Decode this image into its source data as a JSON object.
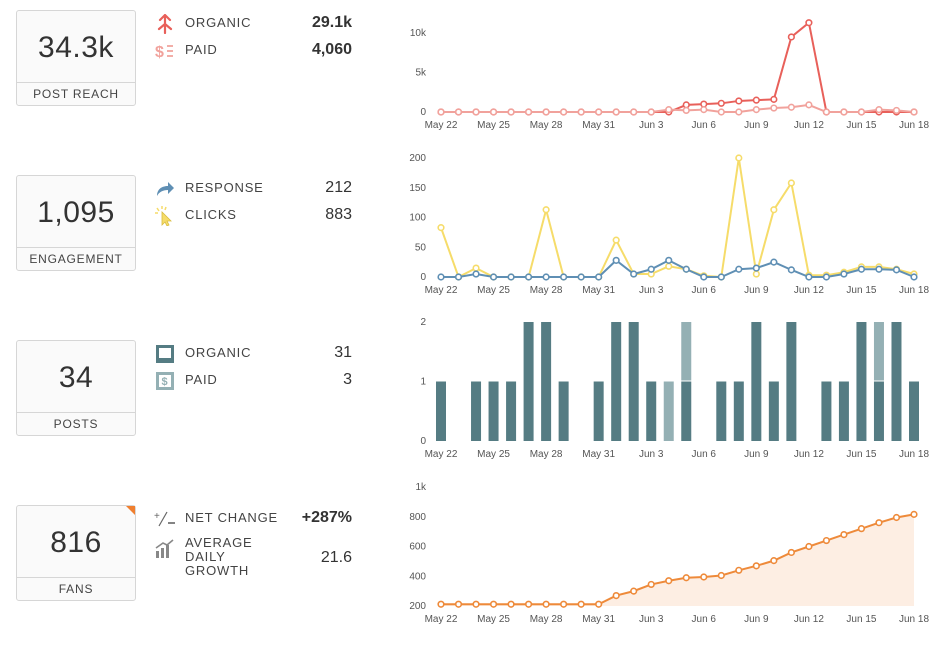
{
  "rows": [
    {
      "kpi": {
        "value": "34.3k",
        "label": "POST REACH"
      },
      "metrics": [
        {
          "icon": "organic-reach-icon",
          "label": "ORGANIC",
          "value": "29.1k"
        },
        {
          "icon": "paid-reach-icon",
          "label": "PAID",
          "value": "4,060"
        }
      ]
    },
    {
      "kpi": {
        "value": "1,095",
        "label": "ENGAGEMENT"
      },
      "metrics": [
        {
          "icon": "response-arrow-icon",
          "label": "RESPONSE",
          "value": "212"
        },
        {
          "icon": "click-cursor-icon",
          "label": "CLICKS",
          "value": "883"
        }
      ]
    },
    {
      "kpi": {
        "value": "34",
        "label": "POSTS"
      },
      "metrics": [
        {
          "icon": "organic-post-icon",
          "label": "ORGANIC",
          "value": "31"
        },
        {
          "icon": "paid-post-icon",
          "label": "PAID",
          "value": "3"
        }
      ]
    },
    {
      "kpi": {
        "value": "816",
        "label": "FANS"
      },
      "metrics": [
        {
          "icon": "plus-minus-icon",
          "label": "NET CHANGE",
          "value": "+287%"
        },
        {
          "icon": "growth-bars-icon",
          "label": "AVERAGE\nDAILY\nGROWTH",
          "value": "21.6"
        }
      ]
    }
  ],
  "colors": {
    "organic_reach": "#e8605a",
    "paid_reach": "#f1a29c",
    "response": "#5f8fb4",
    "clicks": "#f6dc6a",
    "posts_organic": "#557c83",
    "posts_paid": "#94b0b4",
    "fans": "#ee8a3a",
    "fans_fill": "#fdeee3"
  },
  "chart_data": [
    {
      "type": "line",
      "title": "",
      "x": [
        "May 22",
        "May 23",
        "May 24",
        "May 25",
        "May 26",
        "May 27",
        "May 28",
        "May 29",
        "May 30",
        "May 31",
        "Jun 1",
        "Jun 2",
        "Jun 3",
        "Jun 4",
        "Jun 5",
        "Jun 6",
        "Jun 7",
        "Jun 8",
        "Jun 9",
        "Jun 10",
        "Jun 11",
        "Jun 12",
        "Jun 13",
        "Jun 14",
        "Jun 15",
        "Jun 16",
        "Jun 17",
        "Jun 18"
      ],
      "xticks": [
        "May 22",
        "May 25",
        "May 28",
        "May 31",
        "Jun 3",
        "Jun 6",
        "Jun 9",
        "Jun 12",
        "Jun 15",
        "Jun 18"
      ],
      "ylim": [
        0,
        10000
      ],
      "yticks": [
        0,
        5000,
        10000
      ],
      "ytick_labels": [
        "0",
        "5k",
        "10k"
      ],
      "series": [
        {
          "key": "organic_reach",
          "values": [
            0,
            0,
            0,
            0,
            0,
            0,
            0,
            0,
            0,
            0,
            0,
            0,
            0,
            0,
            900,
            1000,
            1100,
            1400,
            1500,
            1600,
            9500,
            11300,
            0,
            0,
            0,
            0,
            0,
            0
          ]
        },
        {
          "key": "paid_reach",
          "values": [
            0,
            0,
            0,
            0,
            0,
            0,
            0,
            0,
            0,
            0,
            0,
            0,
            0,
            300,
            200,
            300,
            0,
            0,
            300,
            500,
            600,
            900,
            0,
            0,
            0,
            300,
            200,
            0
          ]
        }
      ]
    },
    {
      "type": "line",
      "title": "",
      "x": [
        "May 22",
        "May 23",
        "May 24",
        "May 25",
        "May 26",
        "May 27",
        "May 28",
        "May 29",
        "May 30",
        "May 31",
        "Jun 1",
        "Jun 2",
        "Jun 3",
        "Jun 4",
        "Jun 5",
        "Jun 6",
        "Jun 7",
        "Jun 8",
        "Jun 9",
        "Jun 10",
        "Jun 11",
        "Jun 12",
        "Jun 13",
        "Jun 14",
        "Jun 15",
        "Jun 16",
        "Jun 17",
        "Jun 18"
      ],
      "xticks": [
        "May 22",
        "May 25",
        "May 28",
        "May 31",
        "Jun 3",
        "Jun 6",
        "Jun 9",
        "Jun 12",
        "Jun 15",
        "Jun 18"
      ],
      "ylim": [
        0,
        200
      ],
      "yticks": [
        0,
        50,
        100,
        150,
        200
      ],
      "series": [
        {
          "key": "clicks",
          "values": [
            83,
            0,
            15,
            0,
            0,
            0,
            113,
            0,
            0,
            0,
            62,
            5,
            5,
            18,
            13,
            2,
            0,
            200,
            5,
            113,
            158,
            3,
            3,
            8,
            17,
            17,
            13,
            5
          ]
        },
        {
          "key": "response",
          "values": [
            0,
            0,
            5,
            0,
            0,
            0,
            0,
            0,
            0,
            0,
            28,
            5,
            13,
            28,
            13,
            0,
            0,
            13,
            15,
            25,
            12,
            0,
            0,
            5,
            13,
            13,
            12,
            0
          ]
        }
      ]
    },
    {
      "type": "bar",
      "title": "",
      "x": [
        "May 22",
        "May 23",
        "May 24",
        "May 25",
        "May 26",
        "May 27",
        "May 28",
        "May 29",
        "May 30",
        "May 31",
        "Jun 1",
        "Jun 2",
        "Jun 3",
        "Jun 4",
        "Jun 5",
        "Jun 6",
        "Jun 7",
        "Jun 8",
        "Jun 9",
        "Jun 10",
        "Jun 11",
        "Jun 12",
        "Jun 13",
        "Jun 14",
        "Jun 15",
        "Jun 16",
        "Jun 17",
        "Jun 18"
      ],
      "xticks": [
        "May 22",
        "May 25",
        "May 28",
        "May 31",
        "Jun 3",
        "Jun 6",
        "Jun 9",
        "Jun 12",
        "Jun 15",
        "Jun 18"
      ],
      "ylim": [
        0,
        2
      ],
      "yticks": [
        0,
        1,
        2
      ],
      "stacked": true,
      "series": [
        {
          "key": "posts_organic",
          "values": [
            1,
            0,
            1,
            1,
            1,
            2,
            2,
            1,
            0,
            1,
            2,
            2,
            1,
            0,
            1,
            0,
            1,
            1,
            2,
            1,
            2,
            0,
            1,
            1,
            2,
            1,
            2,
            1
          ]
        },
        {
          "key": "posts_paid",
          "values": [
            0,
            0,
            0,
            0,
            0,
            0,
            0,
            0,
            0,
            0,
            0,
            0,
            0,
            1,
            1,
            0,
            0,
            0,
            0,
            0,
            0,
            0,
            0,
            0,
            0,
            1,
            0,
            0
          ]
        }
      ]
    },
    {
      "type": "area",
      "title": "",
      "x": [
        "May 22",
        "May 23",
        "May 24",
        "May 25",
        "May 26",
        "May 27",
        "May 28",
        "May 29",
        "May 30",
        "May 31",
        "Jun 1",
        "Jun 2",
        "Jun 3",
        "Jun 4",
        "Jun 5",
        "Jun 6",
        "Jun 7",
        "Jun 8",
        "Jun 9",
        "Jun 10",
        "Jun 11",
        "Jun 12",
        "Jun 13",
        "Jun 14",
        "Jun 15",
        "Jun 16",
        "Jun 17",
        "Jun 18"
      ],
      "xticks": [
        "May 22",
        "May 25",
        "May 28",
        "May 31",
        "Jun 3",
        "Jun 6",
        "Jun 9",
        "Jun 12",
        "Jun 15",
        "Jun 18"
      ],
      "ylim": [
        200,
        1000
      ],
      "yticks": [
        200,
        400,
        600,
        800,
        1000
      ],
      "ytick_labels": [
        "200",
        "400",
        "600",
        "800",
        "1k"
      ],
      "series": [
        {
          "key": "fans",
          "values": [
            212,
            212,
            212,
            212,
            212,
            212,
            212,
            212,
            212,
            212,
            270,
            300,
            345,
            370,
            390,
            395,
            405,
            440,
            470,
            505,
            560,
            600,
            640,
            680,
            720,
            760,
            795,
            816
          ]
        }
      ]
    }
  ]
}
